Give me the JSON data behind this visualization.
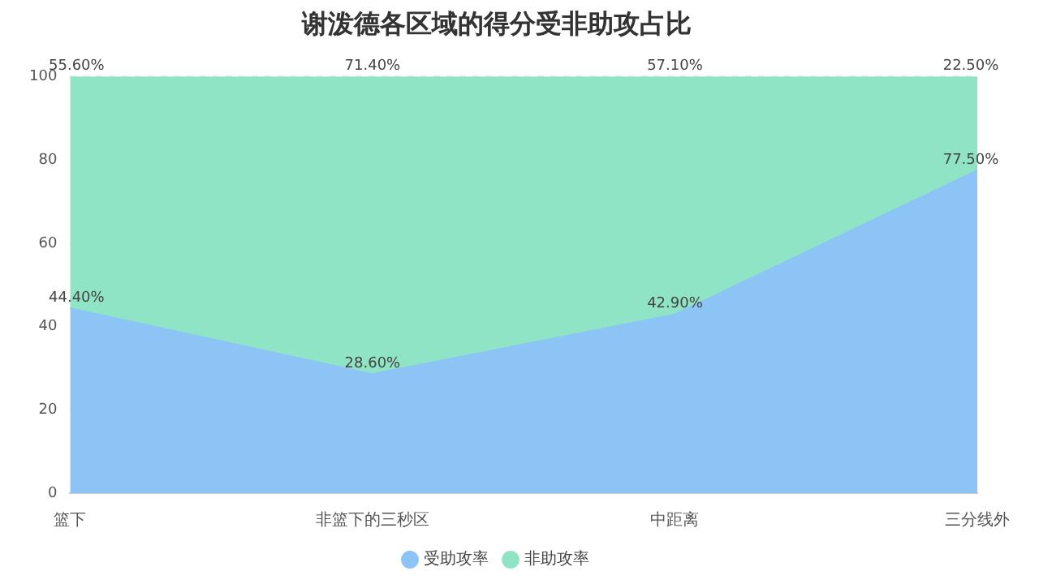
{
  "chart_data": {
    "type": "area",
    "title": "谢泼德各区域的得分受非助攻占比",
    "categories": [
      "篮下",
      "非篮下的三秒区",
      "中距离",
      "三分线外"
    ],
    "stacked": true,
    "ylim": [
      0,
      100
    ],
    "yticks": [
      0,
      20,
      40,
      60,
      80,
      100
    ],
    "grid": "y",
    "legend": "bottom",
    "marker": "none",
    "series": [
      {
        "name": "受助攻率",
        "color": "#8cc4f5",
        "values": [
          44.4,
          28.6,
          42.9,
          77.5
        ],
        "value_labels": [
          "44.40%",
          "28.60%",
          "42.90%",
          "77.50%"
        ]
      },
      {
        "name": "非助攻率",
        "color": "#90e4c6",
        "values": [
          55.6,
          71.4,
          57.1,
          22.5
        ],
        "value_labels": [
          "55.60%",
          "71.40%",
          "57.10%",
          "22.50%"
        ]
      }
    ]
  }
}
